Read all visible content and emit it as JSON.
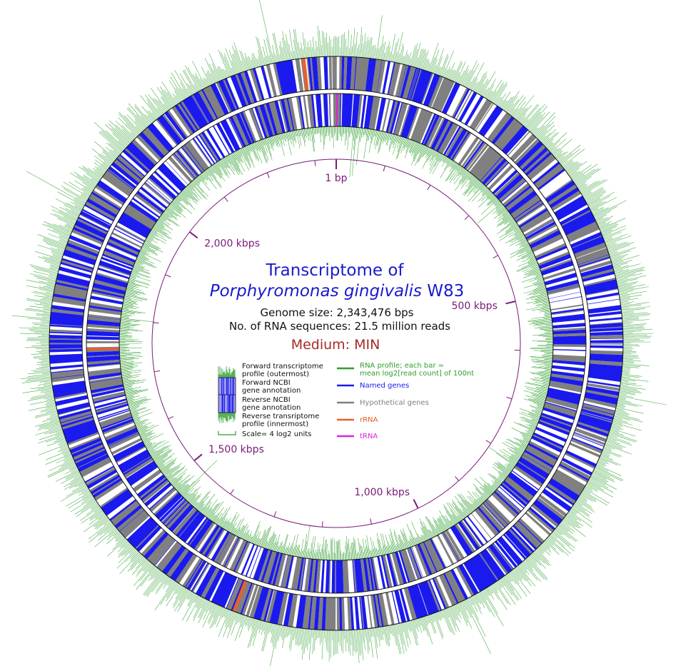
{
  "title": {
    "line1": "Transcriptome of",
    "species": "Porphyromonas gingivalis",
    "strain": "W83"
  },
  "info": {
    "genome_size": "Genome size: 2,343,476 bps",
    "rna_count": "No. of RNA sequences: 21.5 million reads"
  },
  "medium": "Medium: MIN",
  "ticks": {
    "labels": [
      "1 bp",
      "500 kbps",
      "1,000 kbps",
      "1,500 kbps",
      "2,000 kbps"
    ],
    "major_positions_bp": [
      1,
      500000,
      1000000,
      1500000,
      2000000
    ],
    "minor_step_bp": 100000,
    "genome_length_bp": 2343476
  },
  "legend_left": {
    "items": [
      "Forward transcriptome profile (outermost)",
      "Forward NCBI gene annotation",
      "Reverse NCBI gene annotation",
      "Reverse transriptome profile (innermost)"
    ],
    "scale": "Scale= 4 log2 units"
  },
  "legend_left_lines": [
    [
      "Forward transcriptome",
      "profile (outermost)"
    ],
    [
      "Forward NCBI",
      "gene annotation"
    ],
    [
      "Reverse NCBI",
      "gene annotation"
    ],
    [
      "Reverse transriptome",
      "profile (innermost)"
    ]
  ],
  "legend_right": {
    "rna_profile": [
      "RNA profile; each bar =",
      "mean log2[read count] of 100nt"
    ],
    "named_genes": "Named genes",
    "hypothetical_genes": "Hypothetical genes",
    "rrna": "rRNA",
    "trna": "tRNA"
  },
  "colors": {
    "rna_profile": "#2e9e2e",
    "named_genes": "#1a1aee",
    "hypothetical_genes": "#808080",
    "rrna": "#e8602a",
    "trna": "#e020e0",
    "tick": "#7a1a7a",
    "title": "#1a1acc",
    "medium": "#a52a2a"
  }
}
